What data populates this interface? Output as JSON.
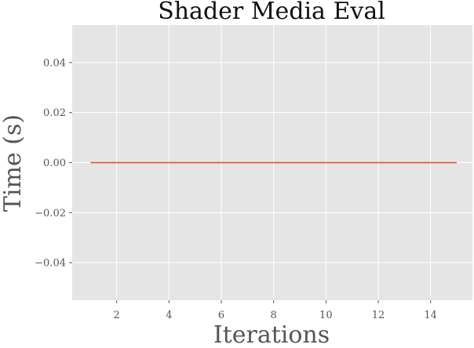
{
  "chart_data": {
    "type": "line",
    "title": "Shader Media Eval",
    "xlabel": "Iterations",
    "ylabel": "Time (s)",
    "xlim": [
      0.3,
      15.6
    ],
    "ylim": [
      -0.055,
      0.055
    ],
    "x_ticks": [
      2,
      4,
      6,
      8,
      10,
      12,
      14
    ],
    "x_tick_labels": [
      "2",
      "4",
      "6",
      "8",
      "10",
      "12",
      "14"
    ],
    "y_ticks": [
      0.04,
      0.02,
      0.0,
      -0.02,
      -0.04
    ],
    "y_tick_labels": [
      "0.04",
      "0.02",
      "0.00",
      "−0.02",
      "−0.04"
    ],
    "grid": true,
    "background": "#e5e5e5",
    "series": [
      {
        "color": "#e24a33",
        "x": [
          1,
          2,
          3,
          4,
          5,
          6,
          7,
          8,
          9,
          10,
          11,
          12,
          13,
          14,
          15
        ],
        "y": [
          0,
          0,
          0,
          0,
          0,
          0,
          0,
          0,
          0,
          0,
          0,
          0,
          0,
          0,
          0
        ]
      }
    ]
  }
}
